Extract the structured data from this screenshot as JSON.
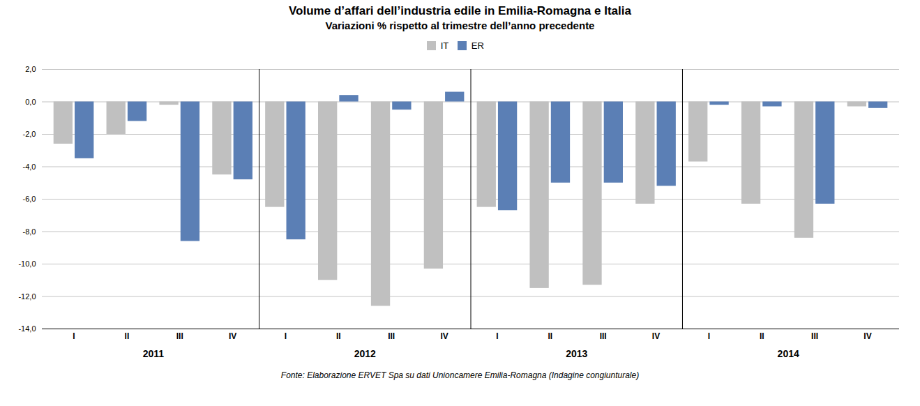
{
  "chart_data": {
    "type": "bar",
    "title": "Volume d’affari dell’industria edile in Emilia-Romagna e Italia",
    "subtitle": "Variazioni  % rispetto al trimestre dell’anno precedente",
    "caption": "Fonte: Elaborazione ERVET Spa su dati Unioncamere Emilia-Romagna (Indagine congiunturale)",
    "categories": [
      "I",
      "II",
      "III",
      "IV",
      "I",
      "II",
      "III",
      "IV",
      "I",
      "II",
      "III",
      "IV",
      "I",
      "II",
      "III",
      "IV"
    ],
    "category_groups": [
      "2011",
      "2012",
      "2013",
      "2014"
    ],
    "series": [
      {
        "name": "IT",
        "color": "#c0c0c0",
        "values": [
          -2.6,
          -2.0,
          -0.2,
          -4.5,
          -6.5,
          -11.0,
          -12.6,
          -10.3,
          -6.5,
          -11.5,
          -11.3,
          -6.3,
          -3.7,
          -6.3,
          -8.4,
          -0.3
        ]
      },
      {
        "name": "ER",
        "color": "#5b7fb5",
        "values": [
          -3.5,
          -1.2,
          -8.6,
          -4.8,
          -8.5,
          0.4,
          -0.5,
          0.6,
          -6.7,
          -5.0,
          -5.0,
          -5.2,
          -0.2,
          -0.3,
          -6.3,
          -0.4
        ]
      }
    ],
    "ylim": [
      -14.0,
      2.0
    ],
    "yticks": [
      {
        "value": 2.0,
        "label": "2,0"
      },
      {
        "value": 0.0,
        "label": "0,0"
      },
      {
        "value": -2.0,
        "label": "-2,0"
      },
      {
        "value": -4.0,
        "label": "-4,0"
      },
      {
        "value": -6.0,
        "label": "-6,0"
      },
      {
        "value": -8.0,
        "label": "-8,0"
      },
      {
        "value": -10.0,
        "label": "-10,0"
      },
      {
        "value": -12.0,
        "label": "-12,0"
      },
      {
        "value": -14.0,
        "label": "-14,0"
      }
    ],
    "grid": true,
    "legend": "top"
  }
}
